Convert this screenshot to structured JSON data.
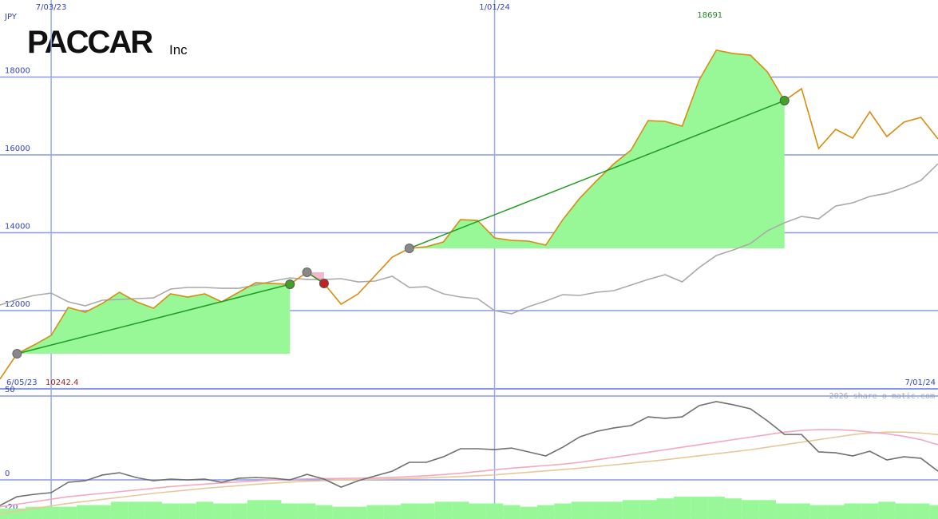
{
  "chart_data": [
    {
      "type": "line",
      "title": "PACCAR",
      "subtitle": "Inc",
      "y_label": "JPY",
      "categories": [
        "6/05/23",
        null,
        null,
        "7/03/23",
        null,
        null,
        null,
        null,
        null,
        null,
        null,
        null,
        null,
        null,
        null,
        null,
        null,
        null,
        null,
        null,
        null,
        null,
        null,
        null,
        null,
        null,
        null,
        null,
        null,
        "1/01/24",
        null,
        null,
        null,
        null,
        null,
        null,
        null,
        null,
        null,
        null,
        null,
        null,
        null,
        null,
        null,
        null,
        null,
        null,
        null,
        null,
        null,
        null,
        null,
        null,
        null,
        "7/01/24"
      ],
      "series": [
        {
          "color": "#d88c10",
          "values": [
            10242.4,
            10892,
            11118,
            11364,
            12082,
            11959,
            12185,
            12472,
            12226,
            12062,
            12431,
            12349,
            12431,
            12226,
            12472,
            12718,
            12697,
            12677,
            12985,
            12697,
            12164,
            12431,
            12903,
            13374,
            13600,
            13641,
            13764,
            14338,
            14318,
            13867,
            13805,
            13785,
            13682,
            14338,
            14892,
            15344,
            15774,
            16123,
            16882,
            16862,
            16738,
            17928,
            18691,
            18605,
            18564,
            18133,
            17395,
            17702,
            16164,
            16656,
            16431,
            17108,
            16472,
            16841,
            16964,
            16410
          ]
        },
        {
          "color": "#aaaaaa",
          "values": [
            12144,
            12287,
            12390,
            12451,
            12226,
            12123,
            12267,
            12287,
            12308,
            12328,
            12554,
            12595,
            12595,
            12574,
            12574,
            12656,
            12759,
            12841,
            12800,
            12800,
            12821,
            12738,
            12759,
            12882,
            12595,
            12615,
            12431,
            12349,
            12308,
            12000,
            11918,
            12103,
            12246,
            12410,
            12390,
            12472,
            12513,
            12656,
            12800,
            12923,
            12738,
            13108,
            13415,
            13559,
            13723,
            14051,
            14256,
            14420,
            14359,
            14687,
            14769,
            14933,
            15015,
            15159,
            15344,
            15774
          ]
        }
      ],
      "trades": [
        {
          "entry": 1,
          "exit": 17,
          "fill": "#98f898",
          "exit_color": "#44a024"
        },
        {
          "entry": 18,
          "exit": 19,
          "fill": "#f8b4cc",
          "exit_color": "#c42222"
        },
        {
          "entry": 24,
          "exit": 46,
          "fill": "#98f898",
          "exit_color": "#44a024"
        }
      ],
      "ylim": [
        9990,
        19980
      ],
      "yticks": [
        12000,
        14000,
        16000,
        18000
      ],
      "grid": true
    },
    {
      "type": "line",
      "watermark": "2026 share-o-matic.com",
      "series": [
        {
          "color": "#98f898",
          "type": "bar",
          "values": [
            -17,
            -17,
            -16,
            -16,
            -16,
            -15,
            -15,
            -13,
            -13,
            -13,
            -14,
            -14,
            -13,
            -14,
            -14,
            -12,
            -12,
            -14,
            -14,
            -15,
            -16,
            -16,
            -15,
            -15,
            -14,
            -14,
            -13,
            -13,
            -14,
            -14,
            -15,
            -16,
            -15,
            -14,
            -13,
            -13,
            -13,
            -12,
            -12,
            -11,
            -10,
            -10,
            -10,
            -11,
            -12,
            -12,
            -14,
            -14,
            -15,
            -15,
            -14,
            -14,
            -13,
            -14,
            -14,
            -15
          ]
        },
        {
          "color": "#e8c898",
          "values": [
            -20,
            -18.5,
            -17,
            -15.5,
            -14,
            -12.8,
            -11.6,
            -10.4,
            -9.2,
            -8,
            -7,
            -6,
            -5,
            -4.2,
            -3.4,
            -2.6,
            -1.9,
            -1.3,
            -0.8,
            -0.4,
            0,
            0.2,
            0.4,
            0.6,
            0.9,
            1.2,
            1.6,
            2,
            2.5,
            3,
            3.8,
            4.6,
            5.4,
            6.2,
            7,
            8,
            9,
            10,
            11,
            12,
            13.2,
            14.4,
            15.6,
            16.8,
            18,
            19.5,
            21,
            22.5,
            24,
            25.5,
            27,
            28,
            28.5,
            28.5,
            28,
            27
          ]
        },
        {
          "color": "#f4a8c0",
          "values": [
            -16,
            -14.5,
            -13,
            -11.5,
            -10,
            -9,
            -8,
            -7,
            -6,
            -5,
            -4,
            -3.2,
            -2.5,
            -1.8,
            -1.2,
            -0.6,
            0,
            0.3,
            0.6,
            0.8,
            0.9,
            1,
            1.2,
            1.5,
            2,
            2.5,
            3.2,
            4,
            5,
            6,
            7,
            7.8,
            8.6,
            9.4,
            10.5,
            12,
            13.5,
            15,
            16.5,
            18,
            19.5,
            21,
            22.5,
            24,
            25.5,
            27,
            28.5,
            29.5,
            30,
            30,
            29.5,
            28.5,
            27.5,
            26,
            24,
            21
          ]
        },
        {
          "color": "#707070",
          "values": [
            -15.2,
            -10,
            -8.6,
            -7.6,
            -1.4,
            -0.5,
            2.9,
            4.3,
            1.4,
            -0.5,
            0.5,
            0,
            0.5,
            -1.4,
            1,
            1.4,
            1,
            0,
            3.3,
            0.5,
            -4.3,
            -0.5,
            2.4,
            5.2,
            10.5,
            10.5,
            13.8,
            18.6,
            18.6,
            18.1,
            19,
            16.7,
            14.3,
            19.5,
            25.7,
            29,
            31,
            32.4,
            37.6,
            36.7,
            37.6,
            44.3,
            46.7,
            44.8,
            42.4,
            35.2,
            27.1,
            27.1,
            16.7,
            16.2,
            14.3,
            17.1,
            11.9,
            13.8,
            12.9,
            5.2
          ]
        }
      ],
      "ylim": [
        -23.3,
        54.3
      ],
      "yticks": [
        -20,
        0,
        50
      ],
      "grid": true
    }
  ]
}
